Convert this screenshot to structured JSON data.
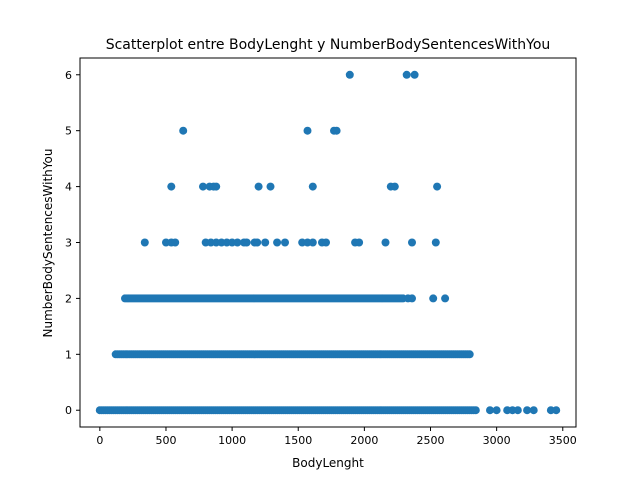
{
  "chart_data": {
    "type": "scatter",
    "title": "Scatterplot entre BodyLenght y NumberBodySentencesWithYou",
    "xlabel": "BodyLenght",
    "ylabel": "NumberBodySentencesWithYou",
    "xlim": [
      -150,
      3600
    ],
    "ylim": [
      -0.3,
      6.3
    ],
    "x_ticks": [
      0,
      500,
      1000,
      1500,
      2000,
      2500,
      3000,
      3500
    ],
    "y_ticks": [
      0,
      1,
      2,
      3,
      4,
      5,
      6
    ],
    "grid": false,
    "marker_color": "#1f77b4",
    "bands": [
      {
        "y": 0,
        "from": 0,
        "to": 2850
      },
      {
        "y": 1,
        "from": 120,
        "to": 2810
      },
      {
        "y": 2,
        "from": 190,
        "to": 2300
      }
    ],
    "points": [
      {
        "x": 2950,
        "y": 0
      },
      {
        "x": 3000,
        "y": 0
      },
      {
        "x": 3080,
        "y": 0
      },
      {
        "x": 3120,
        "y": 0
      },
      {
        "x": 3160,
        "y": 0
      },
      {
        "x": 3230,
        "y": 0
      },
      {
        "x": 3280,
        "y": 0
      },
      {
        "x": 3410,
        "y": 0
      },
      {
        "x": 3450,
        "y": 0
      },
      {
        "x": 2330,
        "y": 2
      },
      {
        "x": 2360,
        "y": 2
      },
      {
        "x": 2520,
        "y": 2
      },
      {
        "x": 2610,
        "y": 2
      },
      {
        "x": 340,
        "y": 3
      },
      {
        "x": 500,
        "y": 3
      },
      {
        "x": 540,
        "y": 3
      },
      {
        "x": 570,
        "y": 3
      },
      {
        "x": 800,
        "y": 3
      },
      {
        "x": 840,
        "y": 3
      },
      {
        "x": 880,
        "y": 3
      },
      {
        "x": 920,
        "y": 3
      },
      {
        "x": 960,
        "y": 3
      },
      {
        "x": 1000,
        "y": 3
      },
      {
        "x": 1040,
        "y": 3
      },
      {
        "x": 1090,
        "y": 3
      },
      {
        "x": 1110,
        "y": 3
      },
      {
        "x": 1170,
        "y": 3
      },
      {
        "x": 1190,
        "y": 3
      },
      {
        "x": 1250,
        "y": 3
      },
      {
        "x": 1340,
        "y": 3
      },
      {
        "x": 1400,
        "y": 3
      },
      {
        "x": 1530,
        "y": 3
      },
      {
        "x": 1570,
        "y": 3
      },
      {
        "x": 1610,
        "y": 3
      },
      {
        "x": 1680,
        "y": 3
      },
      {
        "x": 1710,
        "y": 3
      },
      {
        "x": 1930,
        "y": 3
      },
      {
        "x": 1960,
        "y": 3
      },
      {
        "x": 2160,
        "y": 3
      },
      {
        "x": 2360,
        "y": 3
      },
      {
        "x": 2540,
        "y": 3
      },
      {
        "x": 540,
        "y": 4
      },
      {
        "x": 780,
        "y": 4
      },
      {
        "x": 830,
        "y": 4
      },
      {
        "x": 860,
        "y": 4
      },
      {
        "x": 880,
        "y": 4
      },
      {
        "x": 1200,
        "y": 4
      },
      {
        "x": 1290,
        "y": 4
      },
      {
        "x": 1610,
        "y": 4
      },
      {
        "x": 2200,
        "y": 4
      },
      {
        "x": 2230,
        "y": 4
      },
      {
        "x": 2550,
        "y": 4
      },
      {
        "x": 630,
        "y": 5
      },
      {
        "x": 1570,
        "y": 5
      },
      {
        "x": 1770,
        "y": 5
      },
      {
        "x": 1790,
        "y": 5
      },
      {
        "x": 1890,
        "y": 6
      },
      {
        "x": 2320,
        "y": 6
      },
      {
        "x": 2380,
        "y": 6
      }
    ]
  }
}
